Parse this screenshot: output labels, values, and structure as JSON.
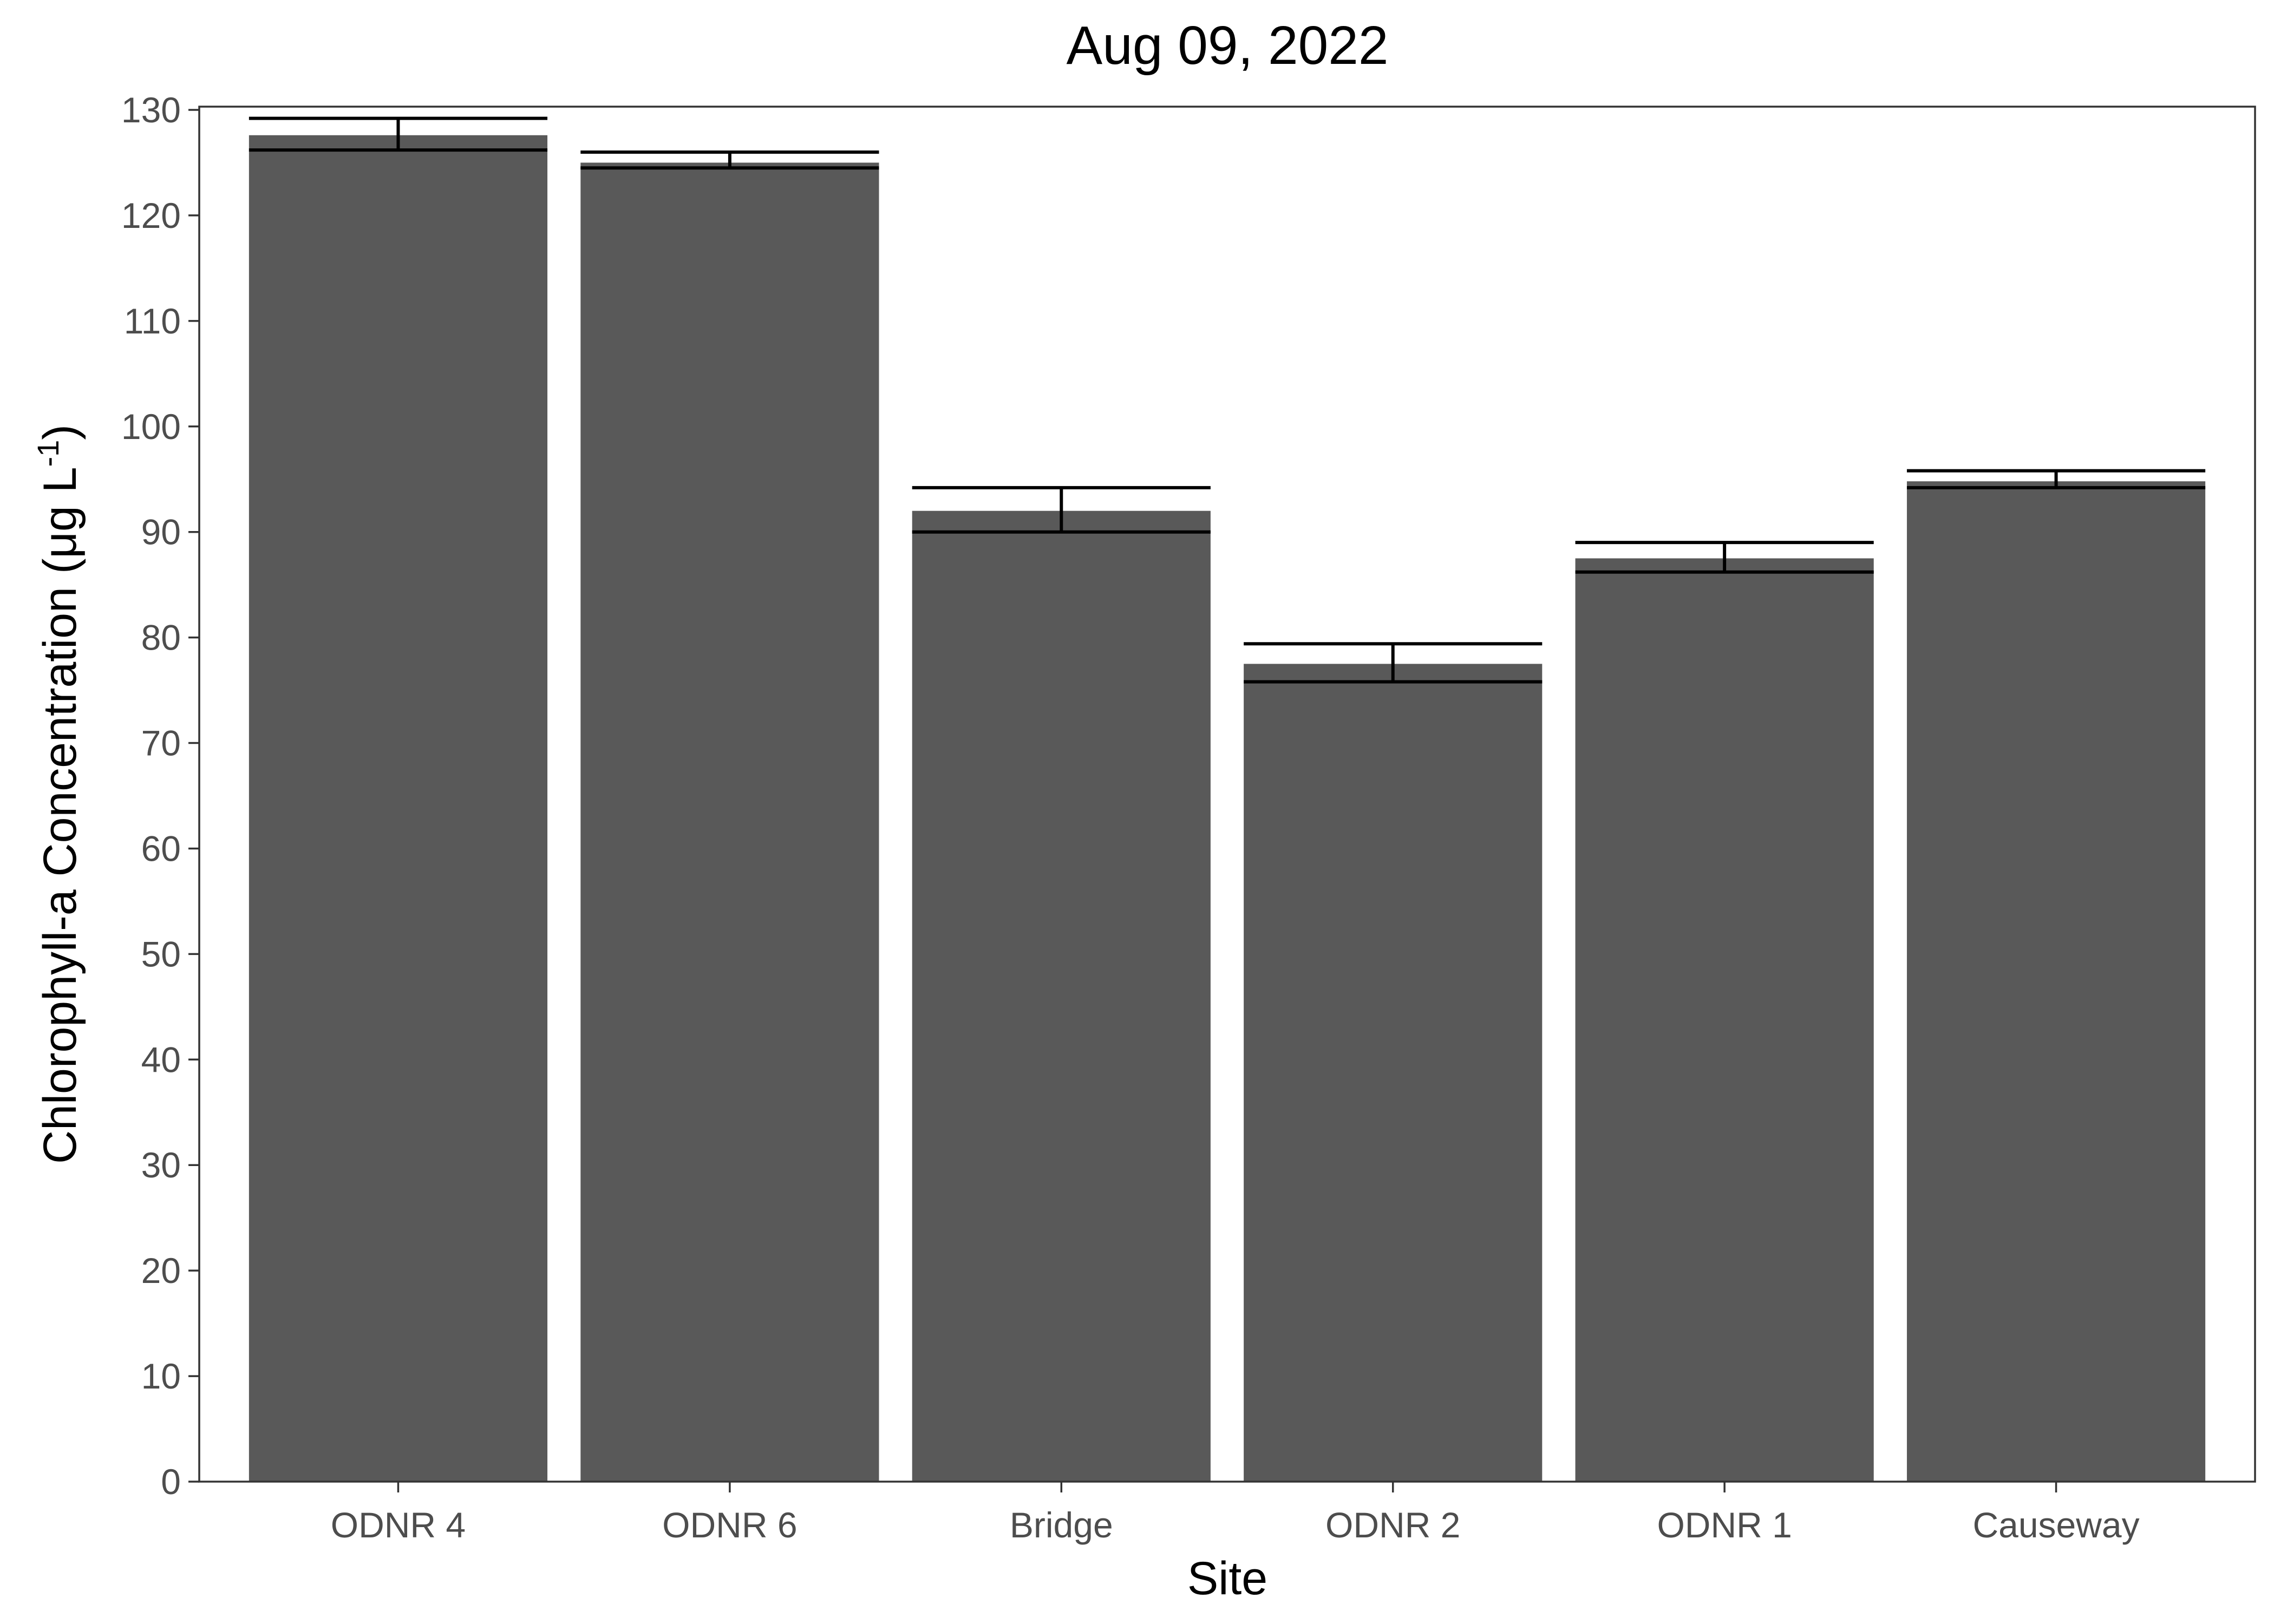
{
  "chart_data": {
    "type": "bar",
    "title": "Aug 09, 2022",
    "xlabel": "Site",
    "ylabel": {
      "text": "Chlorophyll-a Concentration (μg L",
      "superscript": "-1",
      "close": ")"
    },
    "categories": [
      "ODNR 4",
      "ODNR 6",
      "Bridge",
      "ODNR 2",
      "ODNR 1",
      "Causeway"
    ],
    "values": [
      127.6,
      125.0,
      92.0,
      77.5,
      87.5,
      94.8
    ],
    "error_low": [
      126.2,
      124.5,
      90.0,
      75.8,
      86.2,
      94.2
    ],
    "error_high": [
      129.2,
      126.0,
      94.2,
      79.4,
      89.0,
      95.8
    ],
    "ylim": [
      0,
      130
    ],
    "yticks": [
      0,
      10,
      20,
      30,
      40,
      50,
      60,
      70,
      80,
      90,
      100,
      110,
      120,
      130
    ],
    "grid": false,
    "bar_color": "#595959",
    "error_bar_color": "#000000"
  }
}
